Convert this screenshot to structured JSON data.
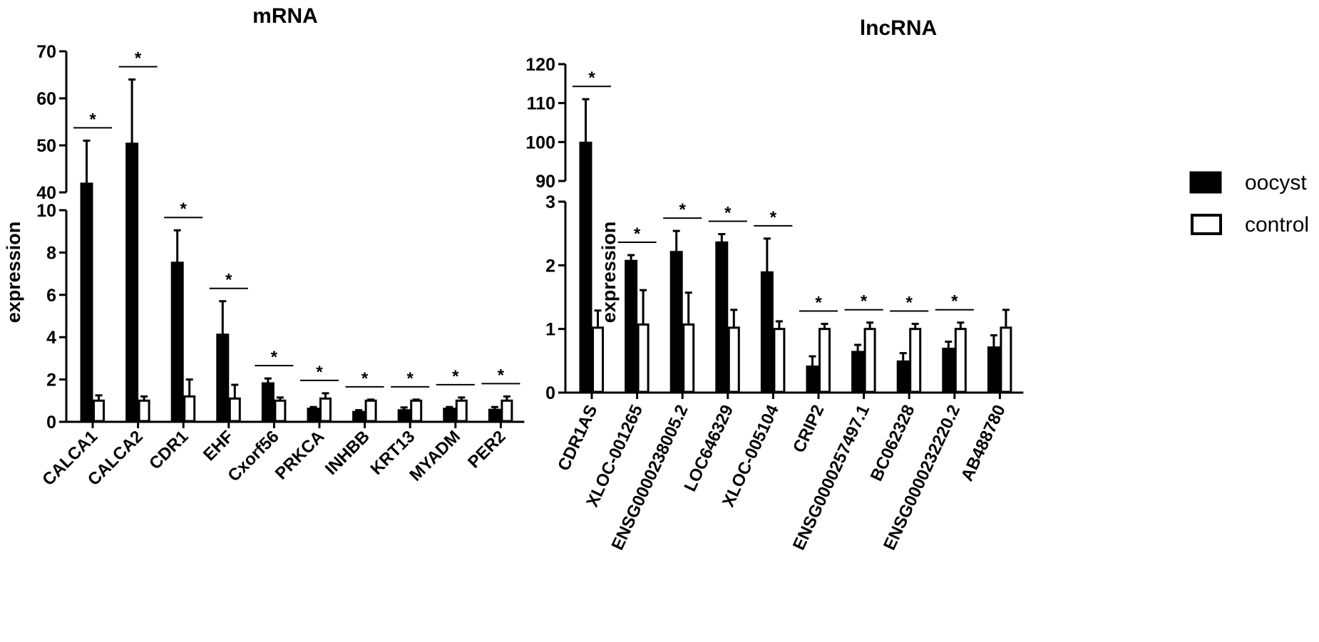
{
  "legend": [
    {
      "label": "oocyst",
      "color": "#000000"
    },
    {
      "label": "control",
      "color": "#ffffff"
    }
  ],
  "chart_data": [
    {
      "type": "bar",
      "title": "mRNA",
      "ylabel": "expression",
      "categories": [
        "CALCA1",
        "CALCA2",
        "CDR1",
        "EHF",
        "Cxorf56",
        "PRKCA",
        "INHBB",
        "KRT13",
        "MYADM",
        "PER2"
      ],
      "series": [
        {
          "name": "oocyst",
          "values": [
            42,
            50.5,
            7.55,
            4.15,
            1.85,
            0.65,
            0.5,
            0.58,
            0.65,
            0.6
          ],
          "errors": [
            9,
            13.5,
            1.5,
            1.55,
            0.2,
            0.05,
            0.05,
            0.1,
            0.05,
            0.1
          ]
        },
        {
          "name": "control",
          "values": [
            1.0,
            1.0,
            1.2,
            1.1,
            1.0,
            1.1,
            1.0,
            1.0,
            1.0,
            1.0
          ],
          "errors": [
            0.25,
            0.2,
            0.8,
            0.65,
            0.15,
            0.25,
            0.05,
            0.05,
            0.15,
            0.2
          ]
        }
      ],
      "significance": [
        "*",
        "*",
        "*",
        "*",
        "*",
        "*",
        "*",
        "*",
        "*",
        "*"
      ],
      "axis_break": {
        "lower": [
          0,
          10
        ],
        "upper": [
          40,
          70
        ]
      },
      "yticks": [
        0,
        2,
        4,
        6,
        8,
        10,
        40,
        50,
        60,
        70
      ]
    },
    {
      "type": "bar",
      "title": "lncRNA",
      "ylabel": "expression",
      "categories": [
        "CDR1AS",
        "XLOC-001265",
        "ENSG0000238005.2",
        "LOC646329",
        "XLOC-005104",
        "CRIP2",
        "ENSG0000257497.1",
        "BC062328",
        "ENSG0000232220.2",
        "AB488780"
      ],
      "series": [
        {
          "name": "oocyst",
          "values": [
            100,
            2.08,
            2.22,
            2.37,
            1.9,
            0.42,
            0.65,
            0.5,
            0.7,
            0.72
          ],
          "errors": [
            11,
            0.08,
            0.32,
            0.12,
            0.52,
            0.15,
            0.1,
            0.12,
            0.1,
            0.18
          ]
        },
        {
          "name": "control",
          "values": [
            1.02,
            1.07,
            1.07,
            1.02,
            1.0,
            1.0,
            1.0,
            1.0,
            1.0,
            1.02
          ],
          "errors": [
            0.27,
            0.54,
            0.5,
            0.28,
            0.12,
            0.08,
            0.1,
            0.08,
            0.1,
            0.28
          ]
        }
      ],
      "significance": [
        "*",
        "*",
        "*",
        "*",
        "*",
        "*",
        "*",
        "*",
        "*",
        ""
      ],
      "axis_break": {
        "lower": [
          0,
          3
        ],
        "upper": [
          90,
          120
        ]
      },
      "yticks": [
        0,
        1,
        2,
        3,
        90,
        100,
        110,
        120
      ]
    }
  ]
}
